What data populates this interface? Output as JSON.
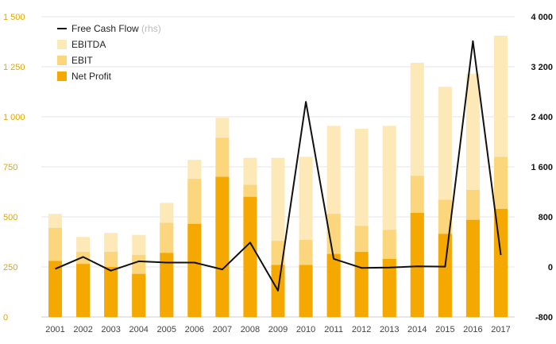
{
  "chart_data": {
    "type": "bar",
    "categories": [
      "2001",
      "2002",
      "2003",
      "2004",
      "2005",
      "2006",
      "2007",
      "2008",
      "2009",
      "2010",
      "2011",
      "2012",
      "2013",
      "2014",
      "2015",
      "2016",
      "2017"
    ],
    "series": [
      {
        "name": "EBITDA",
        "values": [
          515,
          400,
          420,
          410,
          570,
          785,
          995,
          795,
          795,
          800,
          955,
          940,
          955,
          1270,
          1150,
          1215,
          1405
        ],
        "color": "#fde9b8"
      },
      {
        "name": "EBIT",
        "values": [
          445,
          325,
          325,
          310,
          470,
          690,
          895,
          660,
          380,
          385,
          515,
          455,
          435,
          705,
          585,
          635,
          800
        ],
        "color": "#fbd67c"
      },
      {
        "name": "Net Profit",
        "values": [
          280,
          265,
          250,
          215,
          320,
          465,
          700,
          600,
          260,
          260,
          315,
          325,
          290,
          520,
          415,
          485,
          540
        ],
        "color": "#f5a800"
      },
      {
        "name": "Free Cash Flow",
        "axis": "right",
        "values": [
          -30,
          160,
          -60,
          90,
          70,
          70,
          -40,
          390,
          -380,
          2640,
          130,
          -15,
          -10,
          10,
          5,
          3610,
          190
        ],
        "color": "#111111"
      }
    ],
    "ylim_left": [
      0,
      1500
    ],
    "yticks_left": [
      0,
      250,
      500,
      750,
      1000,
      1250,
      1500
    ],
    "ytick_labels_left": [
      "0",
      "250",
      "500",
      "750",
      "1 000",
      "1 250",
      "1 500"
    ],
    "ylim_right": [
      -800,
      4000
    ],
    "yticks_right": [
      -800,
      0,
      800,
      1600,
      2400,
      3200,
      4000
    ],
    "ytick_labels_right": [
      "-800",
      "0",
      "800",
      "1 600",
      "2 400",
      "3 200",
      "4 000"
    ],
    "legend": {
      "position": "top-left",
      "items": [
        {
          "label": "Free Cash Flow",
          "note": "(rhs)",
          "marker": "line",
          "color": "#111111"
        },
        {
          "label": "EBITDA",
          "note": "",
          "marker": "box",
          "color": "#fde9b8"
        },
        {
          "label": "EBIT",
          "note": "",
          "marker": "box",
          "color": "#fbd67c"
        },
        {
          "label": "Net Profit",
          "note": "",
          "marker": "box",
          "color": "#f5a800"
        }
      ]
    },
    "grid": true
  }
}
